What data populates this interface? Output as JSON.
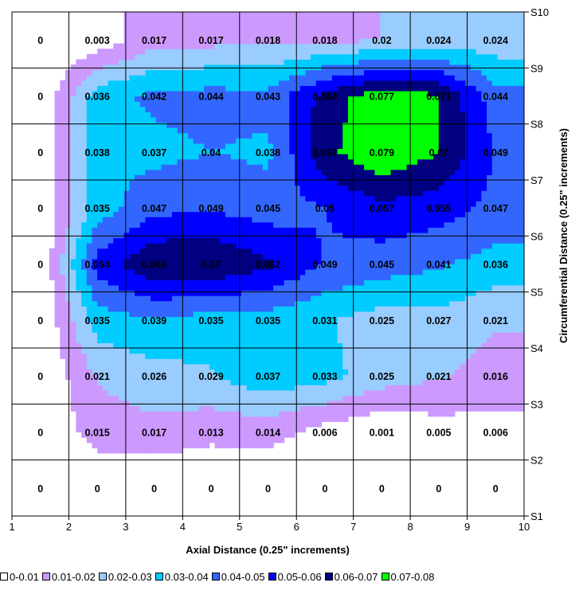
{
  "chart_data": {
    "type": "contour",
    "xlabel": "Axial Distance (0.25\" increments)",
    "ylabel": "Circumferential Distance (0.25\" increments)",
    "x_ticks": [
      "1",
      "2",
      "3",
      "4",
      "5",
      "6",
      "7",
      "8",
      "9",
      "10"
    ],
    "y_ticks": [
      "S1",
      "S2",
      "S3",
      "S4",
      "S5",
      "S6",
      "S7",
      "S8",
      "S9",
      "S10"
    ],
    "xlim": [
      1,
      10
    ],
    "ylim": [
      1,
      10
    ],
    "grid": true,
    "legend_position": "bottom",
    "legend": [
      {
        "label": "0-0.01",
        "color": "#ffffff"
      },
      {
        "label": "0.01-0.02",
        "color": "#cc99ff"
      },
      {
        "label": "0.02-0.03",
        "color": "#99ccff"
      },
      {
        "label": "0.03-0.04",
        "color": "#00ccff"
      },
      {
        "label": "0.04-0.05",
        "color": "#3366ff"
      },
      {
        "label": "0.05-0.06",
        "color": "#0000ff"
      },
      {
        "label": "0.06-0.07",
        "color": "#000080"
      },
      {
        "label": "0.07-0.08",
        "color": "#00ff00"
      }
    ],
    "data_labels": [
      [
        "0",
        "0",
        "0",
        "0",
        "0",
        "0",
        "0",
        "0",
        "0"
      ],
      [
        "0",
        "0.015",
        "0.017",
        "0.013",
        "0.014",
        "0.006",
        "0.001",
        "0.005",
        "0.006"
      ],
      [
        "0",
        "0.021",
        "0.026",
        "0.029",
        "0.037",
        "0.033",
        "0.025",
        "0.021",
        "0.016"
      ],
      [
        "0",
        "0.035",
        "0.039",
        "0.035",
        "0.035",
        "0.031",
        "0.025",
        "0.027",
        "0.021"
      ],
      [
        "0",
        "0.054",
        "0.069",
        "0.07",
        "0.062",
        "0.049",
        "0.045",
        "0.041",
        "0.036"
      ],
      [
        "0",
        "0.035",
        "0.047",
        "0.049",
        "0.045",
        "0.05",
        "0.057",
        "0.055",
        "0.047"
      ],
      [
        "0",
        "0.038",
        "0.037",
        "0.04",
        "0.038",
        "0.067",
        "0.079",
        "0.07",
        "0.049"
      ],
      [
        "0",
        "0.036",
        "0.042",
        "0.044",
        "0.043",
        "0.064",
        "0.077",
        "0.071",
        "0.044"
      ],
      [
        "0",
        "0.003",
        "0.017",
        "0.017",
        "0.018",
        "0.018",
        "0.02",
        "0.024",
        "0.024"
      ]
    ]
  }
}
